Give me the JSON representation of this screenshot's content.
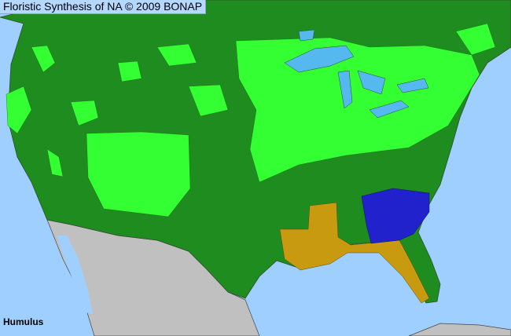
{
  "title": "Floristic Synthesis of NA © 2009 BONAP",
  "taxon": "Humulus",
  "colors": {
    "ocean": "#9fcfff",
    "lakes": "#55b8ee",
    "native_present": "#1f8c1f",
    "county_present": "#33ff33",
    "state_rare": "#c89a10",
    "state_noxious_or_special": "#2222cc",
    "outside_region": "#c0c0c0",
    "borders": "#3a3a3a"
  }
}
